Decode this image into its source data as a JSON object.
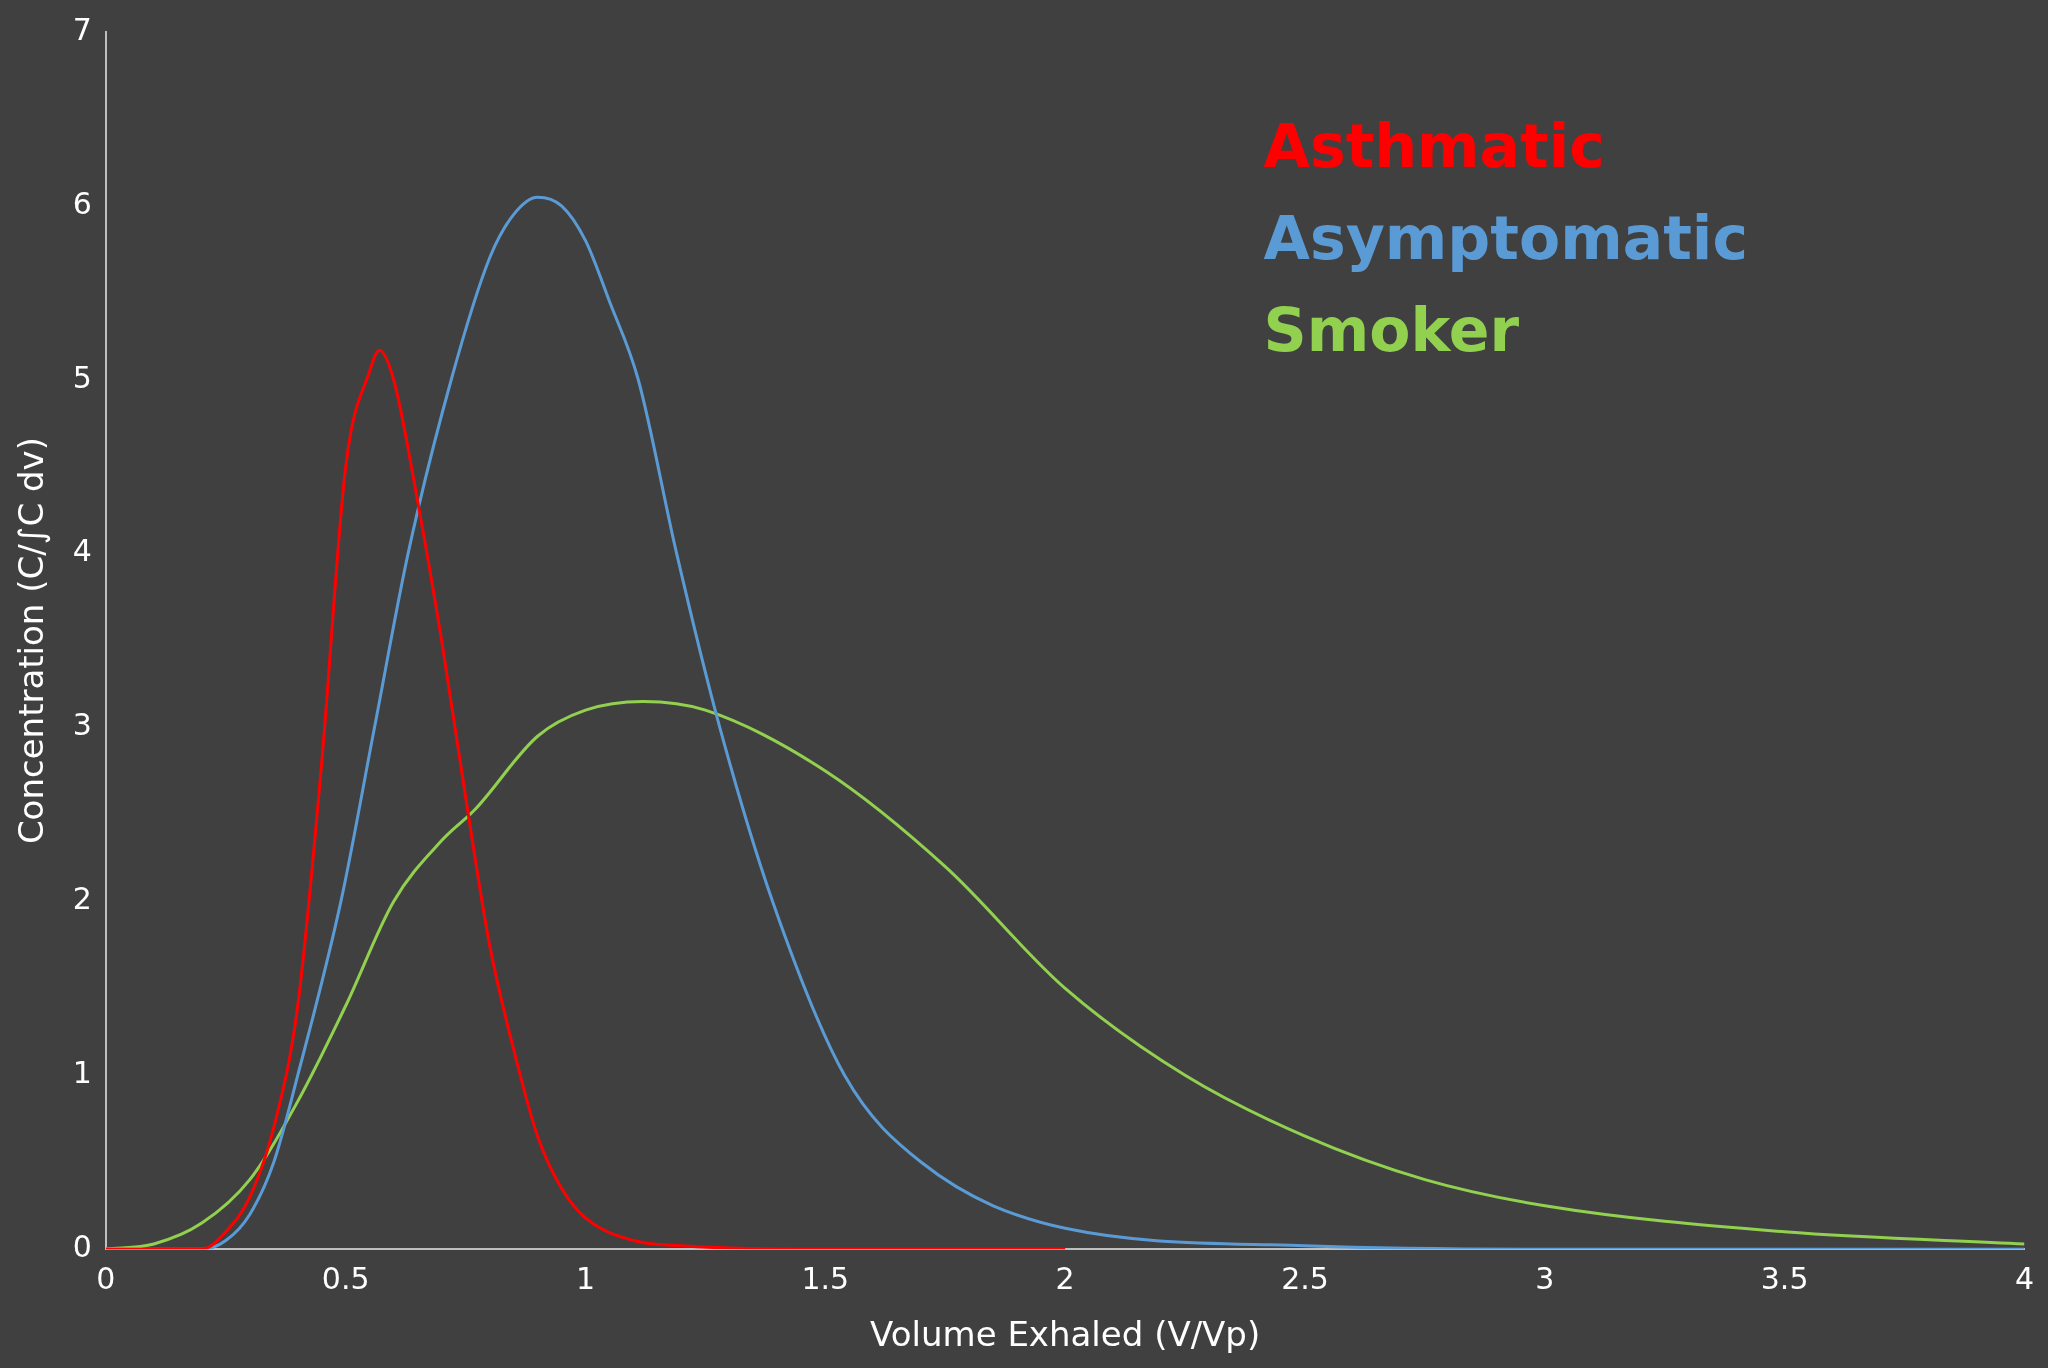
{
  "chart_data": {
    "type": "line",
    "xlabel": "Volume Exhaled (V/Vp)",
    "ylabel": "Concentration (C/∫C dv)",
    "xlim": [
      0,
      4
    ],
    "ylim": [
      0,
      7
    ],
    "xticks": [
      0,
      0.5,
      1,
      1.5,
      2,
      2.5,
      3,
      3.5,
      4
    ],
    "yticks": [
      0,
      1,
      2,
      3,
      4,
      5,
      6,
      7
    ],
    "grid": false,
    "legend": "top right",
    "marker": "none",
    "line_style": "solid",
    "series": [
      {
        "name": "Asthmatic",
        "color": "#ff0000",
        "x": [
          0,
          0.2,
          0.25,
          0.3,
          0.35,
          0.4,
          0.45,
          0.5,
          0.55,
          0.57,
          0.6,
          0.65,
          0.7,
          0.75,
          0.8,
          0.85,
          0.9,
          0.95,
          1.0,
          1.1,
          1.2,
          1.5,
          2
        ],
        "values": [
          0,
          0,
          0.1,
          0.3,
          0.7,
          1.4,
          2.8,
          4.5,
          5.05,
          5.17,
          5.0,
          4.3,
          3.5,
          2.6,
          1.75,
          1.15,
          0.65,
          0.35,
          0.18,
          0.05,
          0.02,
          0,
          0
        ]
      },
      {
        "name": "Asymptomatic",
        "color": "#5b9bd5",
        "x": [
          0,
          0.2,
          0.25,
          0.3,
          0.35,
          0.4,
          0.49,
          0.56,
          0.63,
          0.72,
          0.8,
          0.85,
          0.9,
          0.95,
          1.0,
          1.05,
          1.11,
          1.19,
          1.28,
          1.39,
          1.54,
          1.7,
          2.0,
          2.5,
          3,
          4
        ],
        "values": [
          0,
          0,
          0.05,
          0.2,
          0.5,
          1,
          2,
          3,
          4,
          5,
          5.7,
          5.95,
          6.05,
          6.0,
          5.8,
          5.45,
          5,
          4,
          3,
          2,
          1,
          0.5,
          0.12,
          0.02,
          0,
          0
        ]
      },
      {
        "name": "Smoker",
        "color": "#92d050",
        "x": [
          0,
          0.1,
          0.2,
          0.3,
          0.4,
          0.5,
          0.6,
          0.7,
          0.77,
          0.9,
          1.0,
          1.12,
          1.25,
          1.5,
          1.75,
          2.0,
          2.25,
          2.5,
          2.75,
          3.0,
          3.5,
          4.0
        ],
        "values": [
          0,
          0.03,
          0.15,
          0.4,
          0.85,
          1.4,
          2.0,
          2.35,
          2.53,
          2.95,
          3.1,
          3.15,
          3.1,
          2.75,
          2.2,
          1.5,
          1.0,
          0.65,
          0.4,
          0.25,
          0.1,
          0.03
        ]
      }
    ]
  }
}
